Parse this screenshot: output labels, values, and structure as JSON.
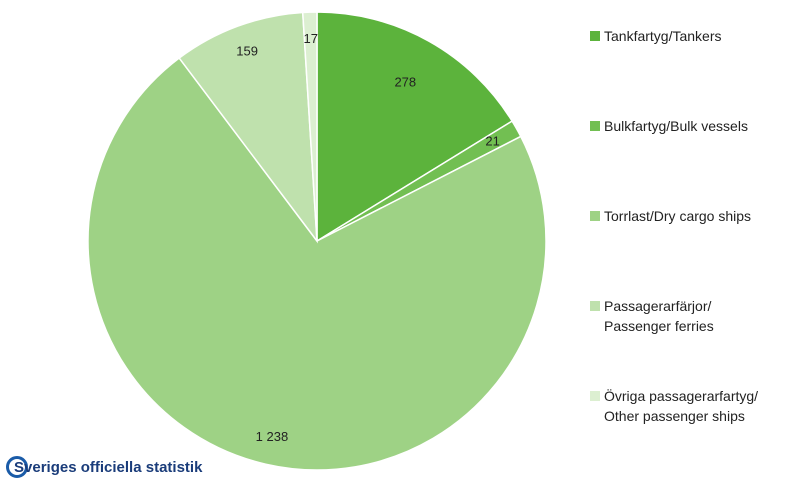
{
  "chart_data": {
    "type": "pie",
    "categories": [
      "Tankfartyg/Tankers",
      "Bulkfartyg/Bulk vessels",
      "Torrlast/Dry cargo ships",
      "Passagerarfärjor/\nPassenger ferries",
      "Övriga passagerarfartyg/\nOther passenger ships"
    ],
    "values": [
      278,
      21,
      1238,
      159,
      17
    ],
    "value_labels": [
      "278",
      "21",
      "1 238",
      "159",
      "17"
    ],
    "colors": [
      "#5cb33c",
      "#72bf52",
      "#9ed285",
      "#bfe1ad",
      "#dcefd1"
    ],
    "legend": "right",
    "footer": "Sveriges officiella statistik"
  }
}
